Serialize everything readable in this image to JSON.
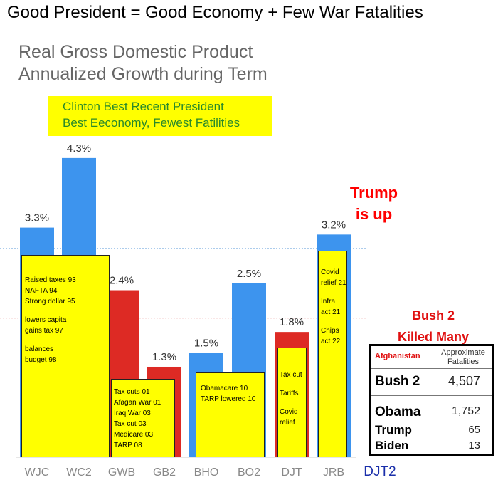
{
  "headline": "Good President  = Good Economy + Few War Fatalities",
  "chart_data": {
    "type": "bar",
    "title_lines": [
      "Real Gross Domestic Product",
      "Annualized Growth during Term"
    ],
    "categories": [
      "WJC",
      "WC2",
      "GWB",
      "GB2",
      "BHO",
      "BO2",
      "DJT",
      "JRB",
      "DJT2"
    ],
    "values": [
      3.3,
      4.3,
      2.4,
      1.3,
      1.5,
      2.5,
      1.8,
      3.2,
      null
    ],
    "value_labels": [
      "3.3%",
      "4.3%",
      "2.4%",
      "1.3%",
      "1.5%",
      "2.5%",
      "1.8%",
      "3.2%",
      ""
    ],
    "bar_colors": [
      "#3d94ee",
      "#3d94ee",
      "#dd2a24",
      "#dd2a24",
      "#3d94ee",
      "#3d94ee",
      "#dd2a24",
      "#3d94ee",
      null
    ],
    "reference_lines": [
      {
        "value": 3.0,
        "color": "#7aaee0"
      },
      {
        "value": 2.0,
        "color": "#d03a3a"
      }
    ],
    "ylim": [
      0,
      5
    ],
    "grid": false,
    "legend": "none"
  },
  "callout": {
    "lines": [
      "Clinton Best Recent President",
      "Best Eeconomy, Fewest Fatilities"
    ]
  },
  "annotations": {
    "trump": [
      "Trump",
      "is up"
    ],
    "bush": [
      "Bush 2",
      "Killed Many"
    ]
  },
  "policy_notes": {
    "clinton": [
      "Raised taxes 93",
      "NAFTA 94",
      "Strong dollar 95",
      "",
      "lowers capita",
      "gains tax 97",
      "",
      "balances",
      "budget 98"
    ],
    "bush": [
      "Tax cuts 01",
      "Afagan War 01",
      "Iraq War 03",
      "Tax cut 03",
      "Medicare 03",
      "TARP 08"
    ],
    "obama": [
      "Obamacare 10",
      "TARP lowered 10"
    ],
    "trump": [
      "Tax cut",
      "",
      "Tariffs",
      "",
      "Covid",
      "relief"
    ],
    "biden": [
      "Covid",
      "relief 21",
      "",
      "Infra",
      "act 21",
      "",
      "Chips",
      "act 22"
    ]
  },
  "fatalities_table": {
    "header_left": "Afghanistan",
    "header_right": [
      "Approximate",
      "Fatalities"
    ],
    "rows": [
      {
        "name": "Bush 2",
        "value": "4,507"
      },
      {
        "name": "Obama",
        "value": "1,752"
      },
      {
        "name": "Trump",
        "value": "65"
      },
      {
        "name": "Biden",
        "value": "13"
      }
    ]
  },
  "colors": {
    "blue_bar": "#3d94ee",
    "red_bar": "#dd2a24",
    "note_yellow": "#ffff00",
    "callout_text": "#2a8a2a",
    "alert_red": "#ff0000",
    "djt2_label": "#1a2faa"
  }
}
